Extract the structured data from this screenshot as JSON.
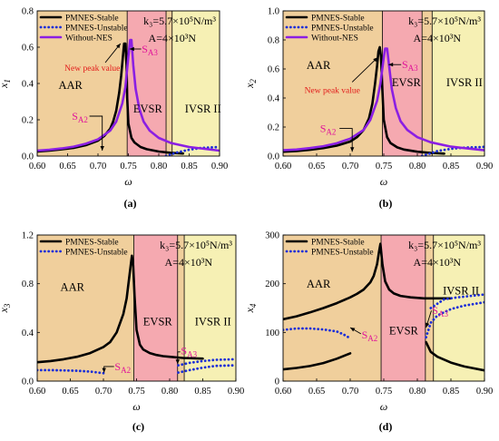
{
  "chart_data": [
    {
      "id": "a",
      "type": "line",
      "caption": "(a)",
      "ylabel": "x",
      "ylabel_sub": "1",
      "xlabel": "ω",
      "xlim": [
        0.6,
        0.9
      ],
      "ylim": [
        0.0,
        0.8
      ],
      "xticks": [
        "0.60",
        "0.65",
        "0.70",
        "0.75",
        "0.80",
        "0.85",
        "0.90"
      ],
      "yticks": [
        "0.0",
        "0.2",
        "0.4",
        "0.6",
        "0.8"
      ],
      "regions": [
        {
          "label": "AAR",
          "from": 0.6,
          "to": 0.748,
          "color": "#f0cf9c"
        },
        {
          "label": "EVSR",
          "from": 0.748,
          "to": 0.812,
          "color": "#f5a9b0"
        },
        {
          "label": "",
          "from": 0.812,
          "to": 0.822,
          "color": "#f0cf9c"
        },
        {
          "label": "IVSR II",
          "from": 0.822,
          "to": 0.9,
          "color": "#f6f0b4"
        }
      ],
      "region_label_pos": {
        "AAR": [
          0.635,
          0.37
        ],
        "EVSR": [
          0.758,
          0.24
        ],
        "IVSR II": [
          0.843,
          0.24
        ]
      },
      "params": {
        "k3": "k₃=5.7×10⁵N/m³",
        "A": "A=4×10³N"
      },
      "legend": [
        "PMNES-Stable",
        "PMNES-Unstable",
        "Without-NES"
      ],
      "annotations": [
        {
          "kind": "sa",
          "label": "S",
          "sub": "A2",
          "text_at": [
            0.657,
            0.22
          ],
          "arrow": [
            [
              0.686,
              0.22
            ],
            [
              0.707,
              0.22
            ],
            [
              0.707,
              0.03
            ]
          ]
        },
        {
          "kind": "sa",
          "label": "S",
          "sub": "A3",
          "text_at": [
            0.772,
            0.59
          ],
          "arrow": [
            [
              0.771,
              0.59
            ],
            [
              0.752,
              0.59
            ]
          ]
        },
        {
          "kind": "peak",
          "text": "New peak value",
          "text_at": [
            0.645,
            0.49
          ],
          "arrow": [
            [
              0.712,
              0.515
            ],
            [
              0.737,
              0.62
            ]
          ]
        }
      ],
      "series": [
        {
          "name": "PMNES-Stable",
          "style": "solid",
          "color": "#000000",
          "x": [
            0.6,
            0.62,
            0.64,
            0.66,
            0.68,
            0.7,
            0.71,
            0.72,
            0.725,
            0.73,
            0.735,
            0.738,
            0.741,
            0.743,
            0.745,
            0.747,
            0.748,
            0.75,
            0.755,
            0.76,
            0.77,
            0.78,
            0.8,
            0.82,
            0.84
          ],
          "y": [
            0.025,
            0.03,
            0.037,
            0.045,
            0.06,
            0.085,
            0.11,
            0.15,
            0.19,
            0.25,
            0.35,
            0.44,
            0.55,
            0.62,
            0.62,
            0.5,
            0.32,
            0.18,
            0.1,
            0.075,
            0.05,
            0.038,
            0.025,
            0.018,
            0.014
          ]
        },
        {
          "name": "PMNES-Unstable",
          "style": "dotted",
          "color": "#1c2fd8",
          "x": [
            0.812,
            0.83,
            0.85,
            0.87,
            0.9
          ],
          "y": [
            0.0,
            0.02,
            0.035,
            0.045,
            0.05
          ]
        },
        {
          "name": "Without-NES",
          "style": "solid",
          "color": "#8b1fe3",
          "x": [
            0.6,
            0.62,
            0.64,
            0.66,
            0.68,
            0.7,
            0.72,
            0.73,
            0.74,
            0.745,
            0.75,
            0.753,
            0.755,
            0.758,
            0.762,
            0.768,
            0.775,
            0.785,
            0.8,
            0.82,
            0.85,
            0.9
          ],
          "y": [
            0.03,
            0.035,
            0.042,
            0.052,
            0.068,
            0.092,
            0.14,
            0.19,
            0.29,
            0.38,
            0.55,
            0.64,
            0.64,
            0.5,
            0.37,
            0.26,
            0.19,
            0.14,
            0.1,
            0.072,
            0.05,
            0.03
          ]
        }
      ]
    },
    {
      "id": "b",
      "type": "line",
      "caption": "(b)",
      "ylabel": "x",
      "ylabel_sub": "2",
      "xlabel": "ω",
      "xlim": [
        0.6,
        0.9
      ],
      "ylim": [
        0.0,
        1.0
      ],
      "xticks": [
        "0.60",
        "0.65",
        "0.70",
        "0.75",
        "0.80",
        "0.85",
        "0.90"
      ],
      "yticks": [
        "0.0",
        "0.2",
        "0.4",
        "0.6",
        "0.8",
        "1.0"
      ],
      "regions": [
        {
          "label": "AAR",
          "from": 0.6,
          "to": 0.748,
          "color": "#f0cf9c"
        },
        {
          "label": "EVSR",
          "from": 0.748,
          "to": 0.807,
          "color": "#f5a9b0"
        },
        {
          "label": "",
          "from": 0.807,
          "to": 0.822,
          "color": "#f0cf9c"
        },
        {
          "label": "IVSR II",
          "from": 0.822,
          "to": 0.9,
          "color": "#f6f0b4"
        }
      ],
      "region_label_pos": {
        "AAR": [
          0.635,
          0.6
        ],
        "EVSR": [
          0.762,
          0.48
        ],
        "IVSR II": [
          0.843,
          0.48
        ]
      },
      "params": {
        "k3": "k₃=5.7×10⁵N/m³",
        "A": "A=4×10³N"
      },
      "legend": [
        "PMNES-Stable",
        "PMNES-Unstable",
        "Without-NES"
      ],
      "annotations": [
        {
          "kind": "sa",
          "label": "S",
          "sub": "A2",
          "text_at": [
            0.655,
            0.19
          ],
          "arrow": [
            [
              0.684,
              0.19
            ],
            [
              0.703,
              0.19
            ],
            [
              0.703,
              0.03
            ]
          ]
        },
        {
          "kind": "sa",
          "label": "S",
          "sub": "A3",
          "text_at": [
            0.777,
            0.63
          ],
          "arrow": [
            [
              0.776,
              0.63
            ],
            [
              0.757,
              0.63
            ]
          ]
        },
        {
          "kind": "peak",
          "text": "New peak value",
          "text_at": [
            0.632,
            0.46
          ],
          "arrow": [
            [
              0.703,
              0.51
            ],
            [
              0.741,
              0.68
            ]
          ]
        }
      ],
      "series": [
        {
          "name": "PMNES-Stable",
          "style": "solid",
          "color": "#000000",
          "x": [
            0.6,
            0.62,
            0.64,
            0.66,
            0.68,
            0.7,
            0.71,
            0.72,
            0.728,
            0.733,
            0.737,
            0.74,
            0.742,
            0.744,
            0.746,
            0.748,
            0.75,
            0.755,
            0.76,
            0.77,
            0.78,
            0.8,
            0.82,
            0.84
          ],
          "y": [
            0.03,
            0.035,
            0.043,
            0.055,
            0.072,
            0.1,
            0.13,
            0.18,
            0.26,
            0.36,
            0.5,
            0.62,
            0.72,
            0.75,
            0.68,
            0.45,
            0.25,
            0.13,
            0.09,
            0.06,
            0.045,
            0.03,
            0.022,
            0.017
          ]
        },
        {
          "name": "PMNES-Unstable",
          "style": "dotted",
          "color": "#1c2fd8",
          "x": [
            0.807,
            0.83,
            0.85,
            0.87,
            0.9
          ],
          "y": [
            0.0,
            0.035,
            0.05,
            0.058,
            0.063
          ]
        },
        {
          "name": "Without-NES",
          "style": "solid",
          "color": "#8b1fe3",
          "x": [
            0.6,
            0.62,
            0.64,
            0.66,
            0.68,
            0.7,
            0.72,
            0.73,
            0.74,
            0.745,
            0.75,
            0.752,
            0.755,
            0.758,
            0.762,
            0.768,
            0.775,
            0.785,
            0.8,
            0.82,
            0.85,
            0.9
          ],
          "y": [
            0.04,
            0.045,
            0.055,
            0.068,
            0.088,
            0.12,
            0.18,
            0.25,
            0.38,
            0.5,
            0.68,
            0.74,
            0.74,
            0.62,
            0.46,
            0.33,
            0.24,
            0.18,
            0.13,
            0.095,
            0.065,
            0.04
          ]
        }
      ]
    },
    {
      "id": "c",
      "type": "line",
      "caption": "(c)",
      "ylabel": "x",
      "ylabel_sub": "3",
      "xlabel": "ω",
      "xlim": [
        0.6,
        0.9
      ],
      "ylim": [
        0.0,
        1.2
      ],
      "xticks": [
        "0.60",
        "0.65",
        "0.70",
        "0.75",
        "0.80",
        "0.85",
        "0.90"
      ],
      "yticks": [
        "0.0",
        "0.4",
        "0.8",
        "1.2"
      ],
      "regions": [
        {
          "label": "AAR",
          "from": 0.6,
          "to": 0.746,
          "color": "#f0cf9c"
        },
        {
          "label": "EVSR",
          "from": 0.746,
          "to": 0.812,
          "color": "#f5a9b0"
        },
        {
          "label": "",
          "from": 0.812,
          "to": 0.822,
          "color": "#f0cf9c"
        },
        {
          "label": "IVSR II",
          "from": 0.822,
          "to": 0.9,
          "color": "#f6f0b4"
        }
      ],
      "region_label_pos": {
        "AAR": [
          0.635,
          0.74
        ],
        "EVSR": [
          0.76,
          0.46
        ],
        "IVSR II": [
          0.838,
          0.46
        ]
      },
      "params": {
        "k3": "k₃=5.7×10⁵N/m³",
        "A": "A=4×10³N"
      },
      "legend": [
        "PMNES-Stable",
        "PMNES-Unstable"
      ],
      "annotations": [
        {
          "kind": "sa",
          "label": "S",
          "sub": "A2",
          "text_at": [
            0.717,
            0.12
          ],
          "arrow": [
            [
              0.716,
              0.12
            ],
            [
              0.701,
              0.12
            ],
            [
              0.701,
              0.07
            ]
          ]
        },
        {
          "kind": "sa",
          "label": "S",
          "sub": "A3",
          "text_at": [
            0.817,
            0.25
          ],
          "arrow": [
            [
              0.816,
              0.24
            ],
            [
              0.812,
              0.24
            ],
            [
              0.812,
              0.14
            ]
          ]
        }
      ],
      "series": [
        {
          "name": "PMNES-Stable",
          "style": "solid",
          "color": "#000000",
          "x": [
            0.6,
            0.62,
            0.64,
            0.66,
            0.68,
            0.7,
            0.71,
            0.72,
            0.73,
            0.735,
            0.74,
            0.743,
            0.745,
            0.747,
            0.75,
            0.755,
            0.76,
            0.77,
            0.78,
            0.79,
            0.8,
            0.82,
            0.85
          ],
          "y": [
            0.155,
            0.165,
            0.18,
            0.2,
            0.23,
            0.28,
            0.32,
            0.4,
            0.55,
            0.68,
            0.9,
            1.03,
            0.95,
            0.7,
            0.42,
            0.3,
            0.26,
            0.23,
            0.215,
            0.205,
            0.2,
            0.19,
            0.185
          ]
        },
        {
          "name": "PMNES-Unstable",
          "style": "dotted",
          "color": "#1c2fd8",
          "x": [
            0.6,
            0.62,
            0.64,
            0.66,
            0.68,
            0.7
          ],
          "y": [
            0.09,
            0.09,
            0.088,
            0.085,
            0.078,
            0.065
          ]
        },
        {
          "name": "PMNES-Unstable",
          "style": "dotted",
          "color": "#1c2fd8",
          "x": [
            0.813,
            0.83,
            0.85,
            0.87,
            0.9
          ],
          "y": [
            0.13,
            0.15,
            0.165,
            0.175,
            0.18
          ]
        },
        {
          "name": "PMNES-Unstable",
          "style": "dotted",
          "color": "#1c2fd8",
          "x": [
            0.813,
            0.83,
            0.85,
            0.87,
            0.9
          ],
          "y": [
            0.07,
            0.09,
            0.11,
            0.125,
            0.13
          ]
        }
      ]
    },
    {
      "id": "d",
      "type": "line",
      "caption": "(d)",
      "ylabel": "x",
      "ylabel_sub": "4",
      "xlabel": "ω",
      "xlim": [
        0.6,
        0.9
      ],
      "ylim": [
        0,
        300
      ],
      "xticks": [
        "0.60",
        "0.65",
        "0.70",
        "0.75",
        "0.80",
        "0.85",
        "0.90"
      ],
      "yticks": [
        "0",
        "100",
        "200",
        "300"
      ],
      "regions": [
        {
          "label": "AAR",
          "from": 0.6,
          "to": 0.746,
          "color": "#f0cf9c"
        },
        {
          "label": "EVSR",
          "from": 0.746,
          "to": 0.812,
          "color": "#f5a9b0"
        },
        {
          "label": "",
          "from": 0.812,
          "to": 0.824,
          "color": "#f0cf9c"
        },
        {
          "label": "IVSR II",
          "from": 0.824,
          "to": 0.9,
          "color": "#f6f0b4"
        }
      ],
      "region_label_pos": {
        "AAR": [
          0.635,
          192
        ],
        "EVSR": [
          0.758,
          96
        ],
        "IVSR II": [
          0.838,
          178
        ]
      },
      "params": {
        "k3": "k₃=5.7×10⁵N/m³",
        "A": "A=4×10³N"
      },
      "legend": [
        "PMNES-Stable",
        "PMNES-Unstable"
      ],
      "annotations": [
        {
          "kind": "sa",
          "label": "S",
          "sub": "A2",
          "text_at": [
            0.717,
            95
          ],
          "arrow": [
            [
              0.716,
              97
            ],
            [
              0.7,
              110
            ]
          ]
        },
        {
          "kind": "sa",
          "label": "S",
          "sub": "A3",
          "text_at": [
            0.822,
            145
          ],
          "arrow": [
            [
              0.821,
              145
            ],
            [
              0.813,
              110
            ]
          ]
        }
      ],
      "series": [
        {
          "name": "PMNES-Stable",
          "style": "solid",
          "color": "#000000",
          "x": [
            0.6,
            0.62,
            0.64,
            0.66,
            0.68,
            0.7,
            0.71,
            0.72,
            0.73,
            0.735,
            0.74,
            0.743,
            0.745,
            0.748,
            0.752,
            0.758,
            0.765,
            0.775,
            0.79,
            0.81,
            0.83,
            0.85
          ],
          "y": [
            127,
            133,
            141,
            150,
            160,
            172,
            179,
            188,
            203,
            216,
            240,
            266,
            282,
            240,
            205,
            188,
            180,
            175,
            172,
            170,
            170,
            170
          ]
        },
        {
          "name": "PMNES-Stable",
          "style": "solid",
          "color": "#000000",
          "x": [
            0.6,
            0.62,
            0.64,
            0.66,
            0.68,
            0.7
          ],
          "y": [
            24,
            27,
            31,
            37,
            46,
            57
          ]
        },
        {
          "name": "PMNES-Stable",
          "style": "solid",
          "color": "#000000",
          "x": [
            0.813,
            0.82,
            0.83,
            0.85,
            0.87,
            0.9
          ],
          "y": [
            80,
            60,
            50,
            38,
            30,
            22
          ]
        },
        {
          "name": "PMNES-Unstable",
          "style": "dotted",
          "color": "#1c2fd8",
          "x": [
            0.6,
            0.62,
            0.64,
            0.66,
            0.68,
            0.69,
            0.7
          ],
          "y": [
            105,
            108,
            108,
            106,
            102,
            96,
            88
          ]
        },
        {
          "name": "PMNES-Unstable",
          "style": "dotted",
          "color": "#1c2fd8",
          "x": [
            0.813,
            0.82,
            0.83,
            0.85,
            0.87,
            0.9
          ],
          "y": [
            90,
            120,
            135,
            148,
            155,
            162
          ]
        },
        {
          "name": "PMNES-Unstable",
          "style": "dotted",
          "color": "#1c2fd8",
          "x": [
            0.82,
            0.84,
            0.86,
            0.88,
            0.9
          ],
          "y": [
            150,
            168,
            172,
            175,
            178
          ]
        }
      ]
    }
  ]
}
